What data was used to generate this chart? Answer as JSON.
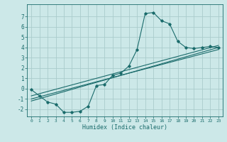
{
  "xlabel": "Humidex (Indice chaleur)",
  "background_color": "#cce8e8",
  "grid_color": "#aacccc",
  "line_color": "#1a6b6b",
  "xlim": [
    -0.5,
    23.5
  ],
  "ylim": [
    -2.7,
    8.2
  ],
  "yticks": [
    -2,
    -1,
    0,
    1,
    2,
    3,
    4,
    5,
    6,
    7
  ],
  "xticks": [
    0,
    1,
    2,
    3,
    4,
    5,
    6,
    7,
    8,
    9,
    10,
    11,
    12,
    13,
    14,
    15,
    16,
    17,
    18,
    19,
    20,
    21,
    22,
    23
  ],
  "curve1_x": [
    0,
    1,
    2,
    3,
    4,
    5,
    6,
    7,
    8,
    9,
    10,
    11,
    12,
    13,
    14,
    15,
    16,
    17,
    18,
    19,
    20,
    21,
    22,
    23
  ],
  "curve1_y": [
    -0.1,
    -0.7,
    -1.3,
    -1.5,
    -2.3,
    -2.3,
    -2.2,
    -1.7,
    0.3,
    0.4,
    1.3,
    1.5,
    2.2,
    3.8,
    7.3,
    7.4,
    6.6,
    6.3,
    4.6,
    4.0,
    3.9,
    4.0,
    4.1,
    4.0
  ],
  "line1_x": [
    0,
    23
  ],
  "line1_y": [
    -1.2,
    4.0
  ],
  "line2_x": [
    0,
    23
  ],
  "line2_y": [
    -1.0,
    3.8
  ],
  "line3_x": [
    0,
    23
  ],
  "line3_y": [
    -0.7,
    4.2
  ]
}
